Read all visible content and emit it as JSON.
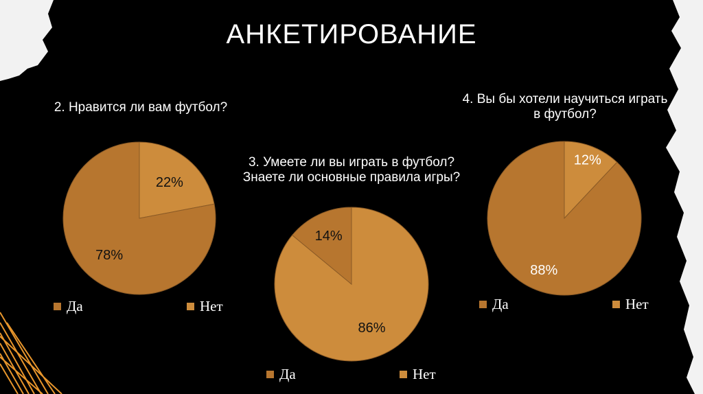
{
  "slide": {
    "title": "АНКЕТИРОВАНИЕ"
  },
  "colors": {
    "yes": "#b7762f",
    "no": "#cd8c3c",
    "background": "#000000",
    "paper": "#f2f2f2"
  },
  "chart_data": [
    {
      "type": "pie",
      "title": "2. Нравится ли вам футбол?",
      "categories": [
        "Да",
        "Нет"
      ],
      "values": [
        78,
        22
      ],
      "data_labels": [
        "78%",
        "22%"
      ],
      "legend": {
        "position": "bottom",
        "items": [
          "Да",
          "Нет"
        ]
      }
    },
    {
      "type": "pie",
      "title": "3. Умеете ли вы играть в футбол? Знаете ли основные правила игры?",
      "categories": [
        "Да",
        "Нет"
      ],
      "values": [
        14,
        86
      ],
      "data_labels": [
        "14%",
        "86%"
      ],
      "legend": {
        "position": "bottom",
        "items": [
          "Да",
          "Нет"
        ]
      }
    },
    {
      "type": "pie",
      "title": "4. Вы бы хотели научиться играть в футбол?",
      "categories": [
        "Да",
        "Нет"
      ],
      "values": [
        88,
        12
      ],
      "data_labels": [
        "88%",
        "12%"
      ],
      "legend": {
        "position": "bottom",
        "items": [
          "Да",
          "Нет"
        ]
      }
    }
  ]
}
